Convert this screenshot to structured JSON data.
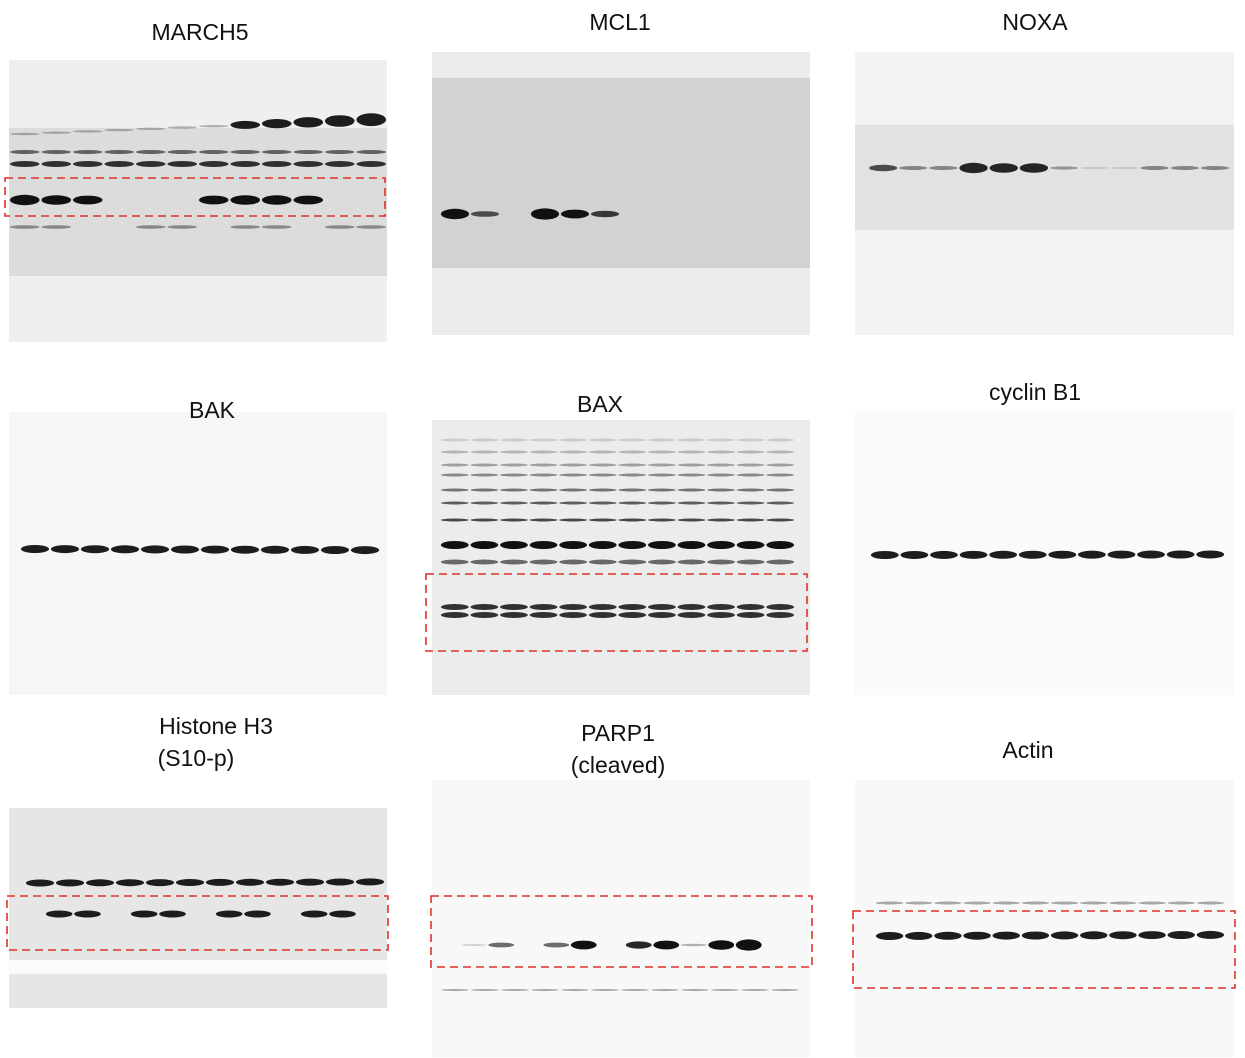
{
  "panels": [
    {
      "title_lines": [
        "MARCH5"
      ]
    },
    {
      "title_lines": [
        "MCL1"
      ]
    },
    {
      "title_lines": [
        "NOXA"
      ]
    },
    {
      "title_lines": [
        "BAK"
      ]
    },
    {
      "title_lines": [
        "BAX"
      ]
    },
    {
      "title_lines": [
        "cyclin B1"
      ]
    },
    {
      "title_lines": [
        "Histone H3",
        "(S10-p)"
      ]
    },
    {
      "title_lines": [
        "PARP1",
        "(cleaved)"
      ]
    },
    {
      "title_lines": [
        "Actin"
      ]
    }
  ]
}
